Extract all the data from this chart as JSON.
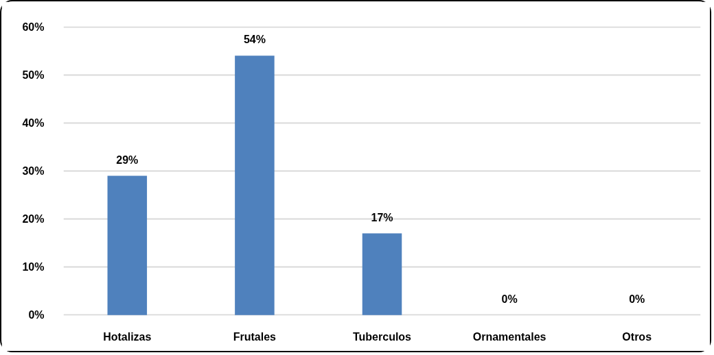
{
  "chart_data": {
    "type": "bar",
    "categories": [
      "Hotalizas",
      "Frutales",
      "Tuberculos",
      "Ornamentales",
      "Otros"
    ],
    "values": [
      29,
      54,
      17,
      0,
      0
    ],
    "value_labels": [
      "29%",
      "54%",
      "17%",
      "0%",
      "0%"
    ],
    "color": "#4f81bd",
    "ylim": [
      0,
      60
    ],
    "yticks": [
      {
        "value": 0,
        "label": "0%"
      },
      {
        "value": 10,
        "label": "10%"
      },
      {
        "value": 20,
        "label": "20%"
      },
      {
        "value": 30,
        "label": "30%"
      },
      {
        "value": 40,
        "label": "40%"
      },
      {
        "value": 50,
        "label": "50%"
      },
      {
        "value": 60,
        "label": "60%"
      }
    ],
    "grid": "y"
  }
}
